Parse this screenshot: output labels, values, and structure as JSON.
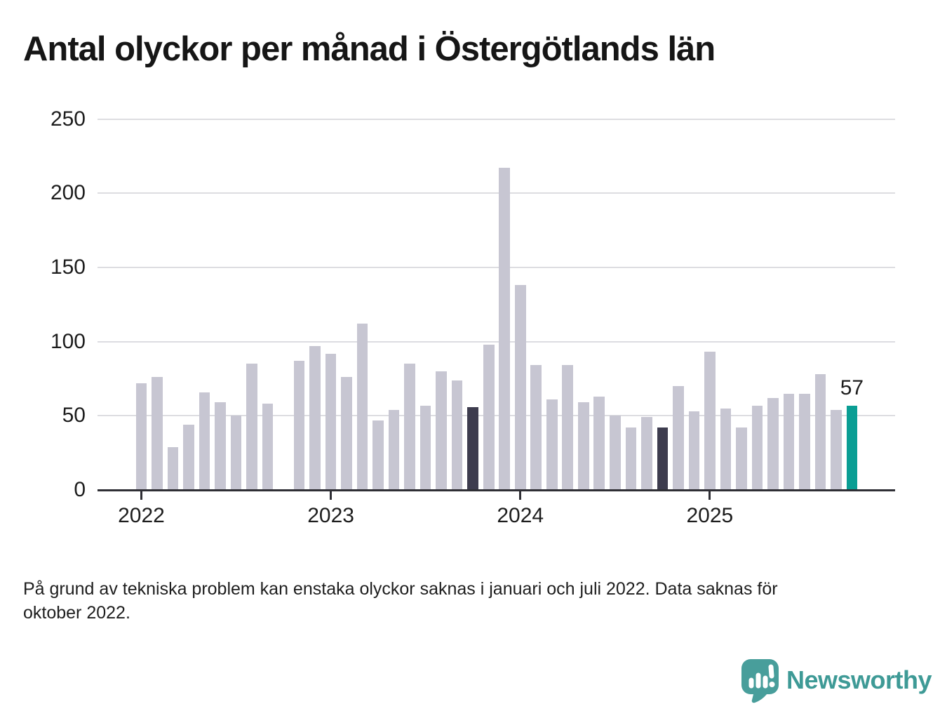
{
  "title": "Antal olyckor per månad i Östergötlands län",
  "footnote": {
    "lines": [
      "På grund av tekniska problem kan enstaka olyckor saknas i januari och juli 2022. Data saknas för",
      "oktober 2022."
    ]
  },
  "logo": {
    "name": "Newsworthy",
    "icon": "speech-bubble-bar-chart-icon"
  },
  "colors": {
    "bar_default": "#c7c6d2",
    "bar_dark": "#3d3c4e",
    "bar_highlight": "#0a9e94",
    "gridline": "#dddde1",
    "axis": "#2f2f35",
    "text": "#1d1d1d",
    "logo_teal": "#3e9a96"
  },
  "chart_data": {
    "type": "bar",
    "title": "Antal olyckor per månad i Östergötlands län",
    "xlabel": "",
    "ylabel": "",
    "ylim": [
      0,
      250
    ],
    "yticks": [
      0,
      50,
      100,
      150,
      200,
      250
    ],
    "grid": true,
    "missing_months": [
      "2022-10"
    ],
    "annotation": {
      "text": "57",
      "month_index": 45
    },
    "xticks": [
      {
        "label": "2022",
        "month_index": 0
      },
      {
        "label": "2023",
        "month_index": 12
      },
      {
        "label": "2024",
        "month_index": 24
      },
      {
        "label": "2025",
        "month_index": 36
      }
    ],
    "points": [
      {
        "month": "2022-01",
        "value": 72,
        "role": "default"
      },
      {
        "month": "2022-02",
        "value": 76,
        "role": "default"
      },
      {
        "month": "2022-03",
        "value": 29,
        "role": "default"
      },
      {
        "month": "2022-04",
        "value": 44,
        "role": "default"
      },
      {
        "month": "2022-05",
        "value": 66,
        "role": "default"
      },
      {
        "month": "2022-06",
        "value": 59,
        "role": "default"
      },
      {
        "month": "2022-07",
        "value": 50,
        "role": "default"
      },
      {
        "month": "2022-08",
        "value": 85,
        "role": "default"
      },
      {
        "month": "2022-09",
        "value": 58,
        "role": "default"
      },
      {
        "month": "2022-10",
        "value": null,
        "role": "missing"
      },
      {
        "month": "2022-11",
        "value": 87,
        "role": "default"
      },
      {
        "month": "2022-12",
        "value": 97,
        "role": "default"
      },
      {
        "month": "2023-01",
        "value": 92,
        "role": "default"
      },
      {
        "month": "2023-02",
        "value": 76,
        "role": "default"
      },
      {
        "month": "2023-03",
        "value": 112,
        "role": "default"
      },
      {
        "month": "2023-04",
        "value": 47,
        "role": "default"
      },
      {
        "month": "2023-05",
        "value": 54,
        "role": "default"
      },
      {
        "month": "2023-06",
        "value": 85,
        "role": "default"
      },
      {
        "month": "2023-07",
        "value": 57,
        "role": "default"
      },
      {
        "month": "2023-08",
        "value": 80,
        "role": "default"
      },
      {
        "month": "2023-09",
        "value": 74,
        "role": "default"
      },
      {
        "month": "2023-10",
        "value": 56,
        "role": "dark"
      },
      {
        "month": "2023-11",
        "value": 98,
        "role": "default"
      },
      {
        "month": "2023-12",
        "value": 217,
        "role": "default"
      },
      {
        "month": "2024-01",
        "value": 138,
        "role": "default"
      },
      {
        "month": "2024-02",
        "value": 84,
        "role": "default"
      },
      {
        "month": "2024-03",
        "value": 61,
        "role": "default"
      },
      {
        "month": "2024-04",
        "value": 84,
        "role": "default"
      },
      {
        "month": "2024-05",
        "value": 59,
        "role": "default"
      },
      {
        "month": "2024-06",
        "value": 63,
        "role": "default"
      },
      {
        "month": "2024-07",
        "value": 50,
        "role": "default"
      },
      {
        "month": "2024-08",
        "value": 42,
        "role": "default"
      },
      {
        "month": "2024-09",
        "value": 49,
        "role": "default"
      },
      {
        "month": "2024-10",
        "value": 42,
        "role": "dark"
      },
      {
        "month": "2024-11",
        "value": 70,
        "role": "default"
      },
      {
        "month": "2024-12",
        "value": 53,
        "role": "default"
      },
      {
        "month": "2025-01",
        "value": 93,
        "role": "default"
      },
      {
        "month": "2025-02",
        "value": 55,
        "role": "default"
      },
      {
        "month": "2025-03",
        "value": 42,
        "role": "default"
      },
      {
        "month": "2025-04",
        "value": 57,
        "role": "default"
      },
      {
        "month": "2025-05",
        "value": 62,
        "role": "default"
      },
      {
        "month": "2025-06",
        "value": 65,
        "role": "default"
      },
      {
        "month": "2025-07",
        "value": 65,
        "role": "default"
      },
      {
        "month": "2025-08",
        "value": 78,
        "role": "default"
      },
      {
        "month": "2025-09",
        "value": 54,
        "role": "default"
      },
      {
        "month": "2025-10",
        "value": 57,
        "role": "highlight"
      }
    ]
  }
}
